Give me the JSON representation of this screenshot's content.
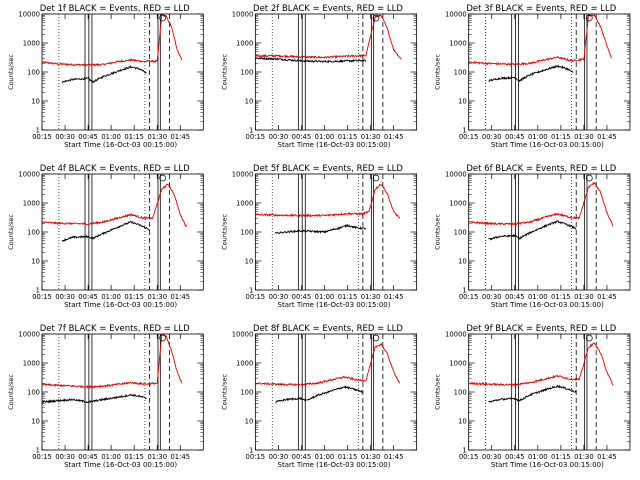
{
  "window": {
    "background": "#ffffff"
  },
  "colors": {
    "events": "#000000",
    "lld": "#e00000",
    "axes": "#000000"
  },
  "chart_data": [
    {
      "type": "line",
      "title": "Det 1f BLACK = Events, RED = LLD",
      "xlabel": "Start Time (16-Oct-03 00:15:00)",
      "ylabel": "Counts/sec",
      "x_ticks": [
        "00:15",
        "00:30",
        "00:45",
        "01:00",
        "01:15",
        "01:30",
        "01:45"
      ],
      "y_ticks": [
        "1",
        "10",
        "100",
        "1000",
        "10000"
      ],
      "y_scale": "log",
      "ylim": [
        1,
        10000
      ],
      "xlim_minutes": [
        0,
        105
      ],
      "series": [
        {
          "color": "red",
          "points": [
            [
              0,
              220
            ],
            [
              10,
              190
            ],
            [
              20,
              180
            ],
            [
              30,
              175
            ],
            [
              40,
              180
            ],
            [
              50,
              230
            ],
            [
              58,
              260
            ],
            [
              66,
              230
            ],
            [
              69,
              240
            ],
            [
              75,
              230
            ],
            [
              78,
              10000
            ],
            [
              81,
              8000
            ],
            [
              84,
              4000
            ],
            [
              88,
              600
            ],
            [
              91,
              260
            ]
          ]
        },
        {
          "color": "black",
          "points": [
            [
              13,
              45
            ],
            [
              20,
              55
            ],
            [
              30,
              60
            ],
            [
              33,
              45
            ],
            [
              40,
              70
            ],
            [
              52,
              120
            ],
            [
              58,
              150
            ],
            [
              64,
              125
            ],
            [
              68,
              90
            ]
          ]
        }
      ]
    },
    {
      "type": "line",
      "title": "Det 2f BLACK = Events, RED = LLD",
      "xlabel": "Start Time (16-Oct-03 00:15:00)",
      "ylabel": "Counts/sec",
      "x_ticks": [
        "00:15",
        "00:30",
        "00:45",
        "01:00",
        "01:15",
        "01:30",
        "01:45"
      ],
      "y_ticks": [
        "1",
        "10",
        "100",
        "1000",
        "10000"
      ],
      "y_scale": "log",
      "ylim": [
        1,
        10000
      ],
      "xlim_minutes": [
        0,
        105
      ],
      "series": [
        {
          "color": "red",
          "points": [
            [
              0,
              360
            ],
            [
              15,
              360
            ],
            [
              30,
              330
            ],
            [
              45,
              320
            ],
            [
              60,
              350
            ],
            [
              72,
              370
            ],
            [
              78,
              8000
            ],
            [
              82,
              9000
            ],
            [
              86,
              3000
            ],
            [
              90,
              600
            ],
            [
              95,
              270
            ]
          ]
        },
        {
          "color": "black",
          "points": [
            [
              0,
              300
            ],
            [
              15,
              280
            ],
            [
              30,
              240
            ],
            [
              45,
              230
            ],
            [
              60,
              240
            ],
            [
              72,
              250
            ]
          ]
        }
      ]
    },
    {
      "type": "line",
      "title": "Det 3f BLACK = Events, RED = LLD",
      "xlabel": "Start Time (16-Oct-03 00:15:00)",
      "ylabel": "Counts/sec",
      "x_ticks": [
        "00:15",
        "00:30",
        "00:45",
        "01:00",
        "01:15",
        "01:30",
        "01:45"
      ],
      "y_ticks": [
        "1",
        "10",
        "100",
        "1000",
        "10000"
      ],
      "y_scale": "log",
      "ylim": [
        1,
        10000
      ],
      "xlim_minutes": [
        0,
        105
      ],
      "series": [
        {
          "color": "red",
          "points": [
            [
              0,
              220
            ],
            [
              10,
              200
            ],
            [
              20,
              190
            ],
            [
              30,
              185
            ],
            [
              40,
              200
            ],
            [
              52,
              280
            ],
            [
              58,
              320
            ],
            [
              66,
              250
            ],
            [
              69,
              250
            ],
            [
              75,
              280
            ],
            [
              78,
              9000
            ],
            [
              82,
              9000
            ],
            [
              86,
              3500
            ],
            [
              90,
              800
            ],
            [
              93,
              300
            ]
          ]
        },
        {
          "color": "black",
          "points": [
            [
              13,
              50
            ],
            [
              20,
              60
            ],
            [
              30,
              65
            ],
            [
              33,
              50
            ],
            [
              40,
              80
            ],
            [
              52,
              130
            ],
            [
              58,
              160
            ],
            [
              64,
              130
            ],
            [
              68,
              95
            ]
          ]
        }
      ]
    },
    {
      "type": "line",
      "title": "Det 4f BLACK = Events, RED = LLD",
      "xlabel": "Start Time (16-Oct-03 00:15:00)",
      "ylabel": "Counts/sec",
      "x_ticks": [
        "00:15",
        "00:30",
        "00:45",
        "01:00",
        "01:15",
        "01:30",
        "01:45"
      ],
      "y_ticks": [
        "1",
        "10",
        "100",
        "1000",
        "10000"
      ],
      "y_scale": "log",
      "ylim": [
        1,
        10000
      ],
      "xlim_minutes": [
        0,
        105
      ],
      "series": [
        {
          "color": "red",
          "points": [
            [
              0,
              220
            ],
            [
              10,
              200
            ],
            [
              20,
              195
            ],
            [
              30,
              190
            ],
            [
              40,
              220
            ],
            [
              52,
              330
            ],
            [
              58,
              400
            ],
            [
              66,
              300
            ],
            [
              72,
              300
            ],
            [
              78,
              3000
            ],
            [
              82,
              4500
            ],
            [
              86,
              2000
            ],
            [
              90,
              400
            ],
            [
              94,
              150
            ]
          ]
        },
        {
          "color": "black",
          "points": [
            [
              13,
              50
            ],
            [
              20,
              65
            ],
            [
              30,
              70
            ],
            [
              33,
              60
            ],
            [
              40,
              90
            ],
            [
              52,
              170
            ],
            [
              58,
              220
            ],
            [
              64,
              170
            ],
            [
              70,
              120
            ]
          ]
        }
      ]
    },
    {
      "type": "line",
      "title": "Det 5f BLACK = Events, RED = LLD",
      "xlabel": "Start Time (16-Oct-03 00:15:00)",
      "ylabel": "Counts/sec",
      "x_ticks": [
        "00:15",
        "00:30",
        "00:45",
        "01:00",
        "01:15",
        "01:30",
        "01:45"
      ],
      "y_ticks": [
        "1",
        "10",
        "100",
        "1000",
        "10000"
      ],
      "y_scale": "log",
      "ylim": [
        1,
        10000
      ],
      "xlim_minutes": [
        0,
        105
      ],
      "series": [
        {
          "color": "red",
          "points": [
            [
              0,
              400
            ],
            [
              15,
              380
            ],
            [
              30,
              370
            ],
            [
              45,
              370
            ],
            [
              60,
              430
            ],
            [
              70,
              420
            ],
            [
              74,
              500
            ],
            [
              78,
              3000
            ],
            [
              82,
              4500
            ],
            [
              86,
              2000
            ],
            [
              90,
              500
            ],
            [
              94,
              300
            ]
          ]
        },
        {
          "color": "black",
          "points": [
            [
              13,
              90
            ],
            [
              20,
              100
            ],
            [
              30,
              110
            ],
            [
              45,
              100
            ],
            [
              55,
              140
            ],
            [
              60,
              170
            ],
            [
              66,
              140
            ],
            [
              72,
              130
            ]
          ]
        }
      ]
    },
    {
      "type": "line",
      "title": "Det 6f BLACK = Events, RED = LLD",
      "xlabel": "Start Time (16-Oct-03 00:15:00)",
      "ylabel": "Counts/sec",
      "x_ticks": [
        "00:15",
        "00:30",
        "00:45",
        "01:00",
        "01:15",
        "01:30",
        "01:45"
      ],
      "y_ticks": [
        "1",
        "10",
        "100",
        "1000",
        "10000"
      ],
      "y_scale": "log",
      "ylim": [
        1,
        10000
      ],
      "xlim_minutes": [
        0,
        105
      ],
      "series": [
        {
          "color": "red",
          "points": [
            [
              0,
              220
            ],
            [
              10,
              200
            ],
            [
              20,
              190
            ],
            [
              30,
              190
            ],
            [
              40,
              220
            ],
            [
              52,
              350
            ],
            [
              58,
              420
            ],
            [
              66,
              320
            ],
            [
              72,
              300
            ],
            [
              78,
              3500
            ],
            [
              82,
              5000
            ],
            [
              86,
              2200
            ],
            [
              90,
              450
            ],
            [
              94,
              160
            ]
          ]
        },
        {
          "color": "black",
          "points": [
            [
              13,
              55
            ],
            [
              20,
              70
            ],
            [
              30,
              75
            ],
            [
              33,
              60
            ],
            [
              40,
              95
            ],
            [
              52,
              180
            ],
            [
              58,
              230
            ],
            [
              64,
              180
            ],
            [
              70,
              130
            ]
          ]
        }
      ]
    },
    {
      "type": "line",
      "title": "Det 7f BLACK = Events, RED = LLD",
      "xlabel": "Start Time (16-Oct-03 00:15:00)",
      "ylabel": "Counts/sec",
      "x_ticks": [
        "00:15",
        "00:30",
        "00:45",
        "01:00",
        "01:15",
        "01:30",
        "01:45"
      ],
      "y_ticks": [
        "1",
        "10",
        "100",
        "1000",
        "10000"
      ],
      "y_scale": "log",
      "ylim": [
        1,
        10000
      ],
      "xlim_minutes": [
        0,
        105
      ],
      "series": [
        {
          "color": "red",
          "points": [
            [
              0,
              180
            ],
            [
              10,
              170
            ],
            [
              20,
              160
            ],
            [
              30,
              150
            ],
            [
              40,
              160
            ],
            [
              52,
              190
            ],
            [
              58,
              210
            ],
            [
              66,
              190
            ],
            [
              69,
              190
            ],
            [
              75,
              200
            ],
            [
              78,
              10000
            ],
            [
              81,
              8000
            ],
            [
              84,
              3000
            ],
            [
              88,
              500
            ],
            [
              91,
              200
            ]
          ]
        },
        {
          "color": "black",
          "points": [
            [
              0,
              45
            ],
            [
              10,
              50
            ],
            [
              20,
              55
            ],
            [
              30,
              45
            ],
            [
              40,
              55
            ],
            [
              52,
              70
            ],
            [
              58,
              80
            ],
            [
              64,
              70
            ],
            [
              68,
              60
            ]
          ]
        }
      ]
    },
    {
      "type": "line",
      "title": "Det 8f BLACK = Events, RED = LLD",
      "xlabel": "Start Time (16-Oct-03 00:15:00)",
      "ylabel": "Counts/sec",
      "x_ticks": [
        "00:15",
        "00:30",
        "00:45",
        "01:00",
        "01:15",
        "01:30",
        "01:45"
      ],
      "y_ticks": [
        "1",
        "10",
        "100",
        "1000",
        "10000"
      ],
      "y_scale": "log",
      "ylim": [
        1,
        10000
      ],
      "xlim_minutes": [
        0,
        105
      ],
      "series": [
        {
          "color": "red",
          "points": [
            [
              0,
              200
            ],
            [
              10,
              190
            ],
            [
              20,
              180
            ],
            [
              30,
              180
            ],
            [
              40,
              200
            ],
            [
              52,
              280
            ],
            [
              58,
              330
            ],
            [
              66,
              260
            ],
            [
              72,
              250
            ],
            [
              78,
              3500
            ],
            [
              82,
              4500
            ],
            [
              86,
              2000
            ],
            [
              90,
              500
            ],
            [
              94,
              200
            ]
          ]
        },
        {
          "color": "black",
          "points": [
            [
              13,
              45
            ],
            [
              20,
              55
            ],
            [
              30,
              60
            ],
            [
              33,
              50
            ],
            [
              40,
              75
            ],
            [
              52,
              120
            ],
            [
              58,
              150
            ],
            [
              64,
              125
            ],
            [
              70,
              100
            ]
          ]
        }
      ]
    },
    {
      "type": "line",
      "title": "Det 9f BLACK = Events, RED = LLD",
      "xlabel": "Start Time (16-Oct-03 00:15:00)",
      "ylabel": "Counts/sec",
      "x_ticks": [
        "00:15",
        "00:30",
        "00:45",
        "01:00",
        "01:15",
        "01:30",
        "01:45"
      ],
      "y_ticks": [
        "1",
        "10",
        "100",
        "1000",
        "10000"
      ],
      "y_scale": "log",
      "ylim": [
        1,
        10000
      ],
      "xlim_minutes": [
        0,
        105
      ],
      "series": [
        {
          "color": "red",
          "points": [
            [
              0,
              200
            ],
            [
              10,
              190
            ],
            [
              20,
              180
            ],
            [
              30,
              180
            ],
            [
              40,
              210
            ],
            [
              52,
              300
            ],
            [
              58,
              360
            ],
            [
              66,
              280
            ],
            [
              72,
              270
            ],
            [
              78,
              3500
            ],
            [
              82,
              4800
            ],
            [
              86,
              2100
            ],
            [
              90,
              500
            ],
            [
              94,
              170
            ]
          ]
        },
        {
          "color": "black",
          "points": [
            [
              13,
              45
            ],
            [
              20,
              55
            ],
            [
              30,
              60
            ],
            [
              33,
              50
            ],
            [
              40,
              80
            ],
            [
              52,
              130
            ],
            [
              58,
              160
            ],
            [
              64,
              130
            ],
            [
              70,
              100
            ]
          ]
        }
      ]
    }
  ]
}
